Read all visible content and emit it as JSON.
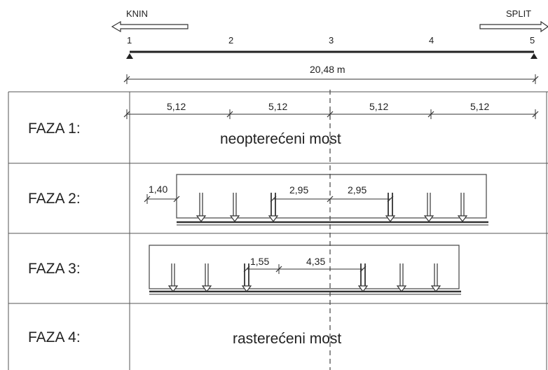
{
  "directions": {
    "left": "KNIN",
    "right": "SPLIT"
  },
  "nodes": [
    "1",
    "2",
    "3",
    "4",
    "5"
  ],
  "total_span": "20,48 m",
  "spans": [
    "5,12",
    "5,12",
    "5,12",
    "5,12"
  ],
  "phases": [
    {
      "label": "FAZA 1:",
      "text": "neopterećeni most"
    },
    {
      "label": "FAZA 2:",
      "dims": [
        "1,40",
        "2,95",
        "2,95"
      ]
    },
    {
      "label": "FAZA 3:",
      "dims": [
        "1,55",
        "4,35"
      ]
    },
    {
      "label": "FAZA 4:",
      "text": "rasterećeni most"
    }
  ]
}
